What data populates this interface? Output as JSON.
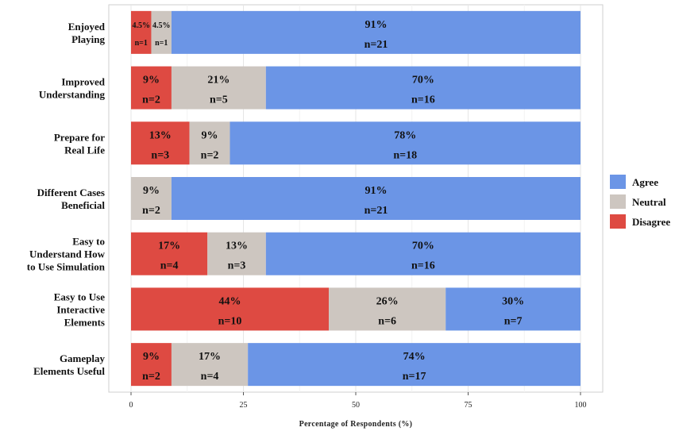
{
  "chart_data": {
    "type": "bar",
    "orientation": "horizontal",
    "stacked": true,
    "xlabel": "Percentage of Respondents (%)",
    "ylabel": "",
    "xlim": [
      0,
      100
    ],
    "x_ticks": [
      "0",
      "25",
      "50",
      "75",
      "100"
    ],
    "grid": true,
    "legend_position": "right",
    "categories": [
      "Enjoyed Playing",
      "Improved Understanding",
      "Prepare for Real Life",
      "Different Cases Beneficial",
      "Easy to Understand How to Use Simulation",
      "Easy to Use Interactive Elements",
      "Gameplay Elements Useful"
    ],
    "category_lines": [
      [
        "Enjoyed",
        "Playing"
      ],
      [
        "Improved",
        "Understanding"
      ],
      [
        "Prepare for",
        "Real Life"
      ],
      [
        "Different Cases",
        "Beneficial"
      ],
      [
        "Easy to",
        "Understand How",
        "to Use Simulation"
      ],
      [
        "Easy to Use",
        "Interactive",
        "Elements"
      ],
      [
        "Gameplay",
        "Elements Useful"
      ]
    ],
    "series": [
      {
        "name": "Disagree",
        "color": "#de4a42",
        "values": [
          4.5,
          9,
          13,
          0,
          17,
          44,
          9
        ],
        "labels": [
          "4.5%",
          "9%",
          "13%",
          "",
          "17%",
          "44%",
          "9%"
        ],
        "counts": [
          "n=1",
          "n=2",
          "n=3",
          "",
          "n=4",
          "n=10",
          "n=2"
        ]
      },
      {
        "name": "Neutral",
        "color": "#cdc6c0",
        "values": [
          4.5,
          21,
          9,
          9,
          13,
          26,
          17
        ],
        "labels": [
          "4.5%",
          "21%",
          "9%",
          "9%",
          "13%",
          "26%",
          "17%"
        ],
        "counts": [
          "n=1",
          "n=5",
          "n=2",
          "n=2",
          "n=3",
          "n=6",
          "n=4"
        ]
      },
      {
        "name": "Agree",
        "color": "#6b95e6",
        "values": [
          91,
          70,
          78,
          91,
          70,
          30,
          74
        ],
        "labels": [
          "91%",
          "70%",
          "78%",
          "91%",
          "70%",
          "30%",
          "74%"
        ],
        "counts": [
          "n=21",
          "n=16",
          "n=18",
          "n=21",
          "n=16",
          "n=7",
          "n=17"
        ]
      }
    ],
    "legend": [
      "Agree",
      "Neutral",
      "Disagree"
    ]
  }
}
